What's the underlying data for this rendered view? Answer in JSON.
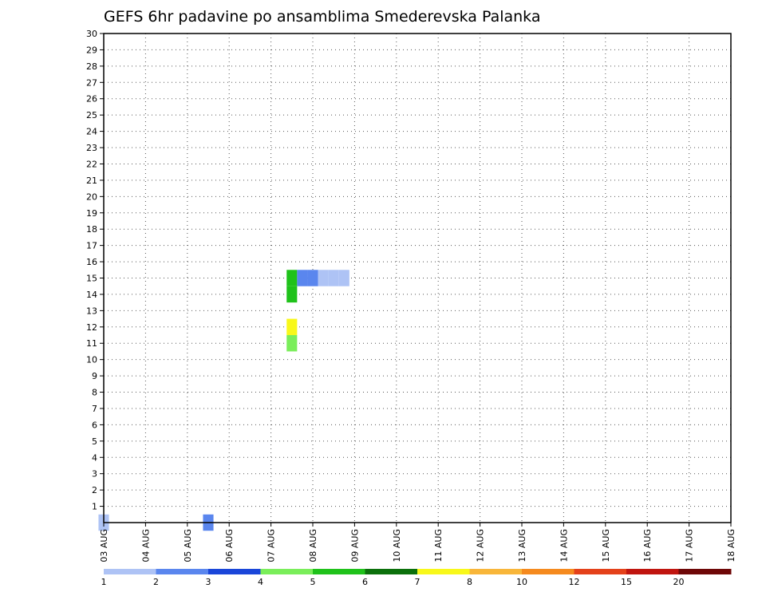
{
  "chart_data": {
    "type": "heatmap",
    "title": "GEFS 6hr padavine po ansamblima Smederevska Palanka",
    "xlabel": "",
    "ylabel": "",
    "x_tick_labels": [
      "03 AUG",
      "04 AUG",
      "05 AUG",
      "06 AUG",
      "07 AUG",
      "08 AUG",
      "09 AUG",
      "10 AUG",
      "11 AUG",
      "12 AUG",
      "13 AUG",
      "14 AUG",
      "15 AUG",
      "16 AUG",
      "17 AUG",
      "18 AUG"
    ],
    "y_tick_labels": [
      "1",
      "2",
      "3",
      "4",
      "5",
      "6",
      "7",
      "8",
      "9",
      "10",
      "11",
      "12",
      "13",
      "14",
      "15",
      "16",
      "17",
      "18",
      "19",
      "20",
      "21",
      "22",
      "23",
      "24",
      "25",
      "26",
      "27",
      "28",
      "29",
      "30"
    ],
    "x_range_days": [
      0,
      15
    ],
    "y_range": [
      0,
      30
    ],
    "grid": true,
    "colorbar": {
      "labels": [
        "1",
        "2",
        "3",
        "4",
        "5",
        "6",
        "7",
        "8",
        "10",
        "12",
        "15",
        "20"
      ],
      "colors": [
        "#aec3f5",
        "#5a86ee",
        "#1a46d9",
        "#7aee5a",
        "#1fc21a",
        "#0b700b",
        "#f8f81a",
        "#f8b63a",
        "#f58a1e",
        "#e4411a",
        "#c0150f",
        "#6e0707"
      ]
    },
    "cells": [
      {
        "t": 0.0,
        "m": 0,
        "v": 1
      },
      {
        "t": 2.5,
        "m": 0,
        "v": 2
      },
      {
        "t": 4.5,
        "m": 15,
        "v": 5
      },
      {
        "t": 4.5,
        "m": 14,
        "v": 5
      },
      {
        "t": 4.75,
        "m": 15,
        "v": 2
      },
      {
        "t": 4.5,
        "m": 12,
        "v": 7
      },
      {
        "t": 4.5,
        "m": 11,
        "v": 4
      },
      {
        "t": 5.0,
        "m": 15,
        "v": 2
      },
      {
        "t": 5.25,
        "m": 15,
        "v": 1
      },
      {
        "t": 5.5,
        "m": 15,
        "v": 1
      },
      {
        "t": 5.75,
        "m": 15,
        "v": 1
      }
    ]
  }
}
